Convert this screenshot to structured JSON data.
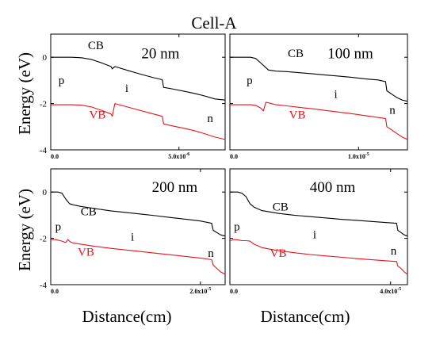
{
  "figure": {
    "title": "Cell-A",
    "xlabel": "Distance(cm)",
    "ylabel": "Energy (eV)"
  },
  "colors": {
    "cb": "#000000",
    "vb": "#e8141c",
    "axes": "#000000"
  },
  "chart_data": [
    {
      "type": "line",
      "title": "20 nm",
      "xlim": [
        0,
        6.8e-06
      ],
      "ylim": [
        -4,
        1
      ],
      "x_ticks": [
        {
          "value": 0,
          "label": "0.0"
        },
        {
          "value": 5e-06,
          "label": "5.0x10^-6"
        }
      ],
      "y_ticks": [
        {
          "value": 0,
          "label": "0"
        },
        {
          "value": -2,
          "label": "-2"
        },
        {
          "value": -4,
          "label": "-4"
        }
      ],
      "annotations": [
        {
          "text": "CB",
          "x": 1.45e-06,
          "y": 0.35,
          "color": "#000000"
        },
        {
          "text": "VB",
          "x": 1.5e-06,
          "y": -2.65,
          "color": "#e8141c"
        },
        {
          "text": "p",
          "x": 3e-07,
          "y": -1.15,
          "color": "#000000"
        },
        {
          "text": "i",
          "x": 2.9e-06,
          "y": -1.5,
          "color": "#000000"
        },
        {
          "text": "n",
          "x": 6.1e-06,
          "y": -2.8,
          "color": "#000000"
        }
      ],
      "series": [
        {
          "name": "CB",
          "x": [
            0,
            4e-07,
            8e-07,
            1.2e-06,
            1.6e-06,
            2e-06,
            2.35e-06,
            2.4e-06,
            2.5e-06,
            3e-06,
            3.5e-06,
            4e-06,
            4.35e-06,
            4.4e-06,
            4.8e-06,
            5.2e-06,
            5.6e-06,
            6e-06,
            6.4e-06,
            6.8e-06
          ],
          "y": [
            0,
            0,
            0,
            -0.02,
            -0.1,
            -0.25,
            -0.4,
            -0.5,
            -0.4,
            -0.57,
            -0.73,
            -0.88,
            -0.97,
            -1.3,
            -1.38,
            -1.47,
            -1.56,
            -1.67,
            -1.8,
            -1.85
          ]
        },
        {
          "name": "VB",
          "x": [
            0,
            4e-07,
            8e-07,
            1.2e-06,
            1.6e-06,
            2e-06,
            2.35e-06,
            2.4e-06,
            2.5e-06,
            3e-06,
            3.5e-06,
            4e-06,
            4.35e-06,
            4.4e-06,
            4.8e-06,
            5.2e-06,
            5.6e-06,
            6e-06,
            6.4e-06,
            6.8e-06
          ],
          "y": [
            -2.05,
            -2.05,
            -2.05,
            -2.07,
            -2.15,
            -2.3,
            -2.45,
            -2.55,
            -2.0,
            -2.15,
            -2.3,
            -2.45,
            -2.55,
            -2.88,
            -2.98,
            -3.07,
            -3.17,
            -3.3,
            -3.45,
            -3.55
          ]
        }
      ]
    },
    {
      "type": "line",
      "title": "100 nm",
      "xlim": [
        0,
        1.38e-05
      ],
      "ylim": [
        -4,
        1
      ],
      "x_ticks": [
        {
          "value": 0,
          "label": "0.0"
        },
        {
          "value": 1e-05,
          "label": "1.0x10^-5"
        }
      ],
      "y_ticks": [
        {
          "value": 0,
          "label": "0"
        },
        {
          "value": -2,
          "label": "-2"
        },
        {
          "value": -4,
          "label": "-4"
        }
      ],
      "annotations": [
        {
          "text": "CB",
          "x": 4.5e-06,
          "y": 0.0,
          "color": "#000000"
        },
        {
          "text": "VB",
          "x": 4.6e-06,
          "y": -2.65,
          "color": "#e8141c"
        },
        {
          "text": "p",
          "x": 1.3e-06,
          "y": -1.15,
          "color": "#000000"
        },
        {
          "text": "i",
          "x": 8.1e-06,
          "y": -1.75,
          "color": "#000000"
        },
        {
          "text": "n",
          "x": 1.24e-05,
          "y": -2.45,
          "color": "#000000"
        }
      ],
      "series": [
        {
          "name": "CB",
          "x": [
            0,
            8e-07,
            1.6e-06,
            2e-06,
            2.4e-06,
            2.8e-06,
            3e-06,
            3.6e-06,
            4.4e-06,
            5.5e-06,
            6.5e-06,
            7.5e-06,
            8.5e-06,
            9.5e-06,
            1.05e-05,
            1.15e-05,
            1.21e-05,
            1.22e-05,
            1.26e-05,
            1.3e-05,
            1.34e-05,
            1.38e-05
          ],
          "y": [
            0,
            0,
            0,
            -0.05,
            -0.25,
            -0.45,
            -0.55,
            -0.6,
            -0.62,
            -0.67,
            -0.72,
            -0.77,
            -0.82,
            -0.87,
            -0.93,
            -0.98,
            -1.05,
            -1.45,
            -1.6,
            -1.75,
            -1.85,
            -1.9
          ]
        },
        {
          "name": "VB",
          "x": [
            0,
            8e-07,
            1.6e-06,
            2e-06,
            2.4e-06,
            2.6e-06,
            2.8e-06,
            3e-06,
            3.6e-06,
            4.4e-06,
            5.5e-06,
            6.5e-06,
            7.5e-06,
            8.5e-06,
            9.5e-06,
            1.05e-05,
            1.15e-05,
            1.21e-05,
            1.22e-05,
            1.26e-05,
            1.3e-05,
            1.34e-05,
            1.38e-05
          ],
          "y": [
            -2.05,
            -2.05,
            -2.05,
            -2.08,
            -2.2,
            -2.32,
            -1.95,
            -1.97,
            -2.05,
            -2.1,
            -2.17,
            -2.23,
            -2.3,
            -2.37,
            -2.44,
            -2.52,
            -2.6,
            -2.65,
            -3.0,
            -3.15,
            -3.3,
            -3.45,
            -3.55
          ]
        }
      ]
    },
    {
      "type": "line",
      "title": "200 nm",
      "xlim": [
        0,
        2.33e-05
      ],
      "ylim": [
        -4,
        1
      ],
      "x_ticks": [
        {
          "value": 0,
          "label": "0.0"
        },
        {
          "value": 2e-05,
          "label": "2.0x10^-5"
        }
      ],
      "y_ticks": [
        {
          "value": 0,
          "label": "0"
        },
        {
          "value": -2,
          "label": "-2"
        },
        {
          "value": -4,
          "label": "-4"
        }
      ],
      "annotations": [
        {
          "text": "CB",
          "x": 4e-06,
          "y": -1.0,
          "color": "#000000"
        },
        {
          "text": "VB",
          "x": 3.6e-06,
          "y": -2.75,
          "color": "#e8141c"
        },
        {
          "text": "p",
          "x": 6e-07,
          "y": -1.65,
          "color": "#000000"
        },
        {
          "text": "i",
          "x": 1.07e-05,
          "y": -2.1,
          "color": "#000000"
        },
        {
          "text": "n",
          "x": 2.1e-05,
          "y": -2.8,
          "color": "#000000"
        }
      ],
      "series": [
        {
          "name": "CB",
          "x": [
            0,
            5e-07,
            1e-06,
            1.5e-06,
            2e-06,
            2.5e-06,
            3e-06,
            4e-06,
            6e-06,
            8e-06,
            1e-05,
            1.2e-05,
            1.4e-05,
            1.6e-05,
            1.8e-05,
            2e-05,
            2.15e-05,
            2.17e-05,
            2.22e-05,
            2.27e-05,
            2.33e-05
          ],
          "y": [
            0,
            0,
            0,
            -0.05,
            -0.3,
            -0.5,
            -0.55,
            -0.62,
            -0.72,
            -0.81,
            -0.88,
            -0.95,
            -1.02,
            -1.1,
            -1.17,
            -1.25,
            -1.35,
            -1.65,
            -1.75,
            -1.85,
            -1.9
          ]
        },
        {
          "name": "VB",
          "x": [
            0,
            5e-07,
            1e-06,
            1.5e-06,
            2e-06,
            2.3e-06,
            2.6e-06,
            3e-06,
            4e-06,
            6e-06,
            8e-06,
            1e-05,
            1.2e-05,
            1.4e-05,
            1.6e-05,
            1.8e-05,
            2e-05,
            2.15e-05,
            2.17e-05,
            2.22e-05,
            2.27e-05,
            2.33e-05
          ],
          "y": [
            -2.05,
            -2.05,
            -2.08,
            -2.12,
            -2.18,
            -2.05,
            -2.15,
            -2.2,
            -2.25,
            -2.35,
            -2.43,
            -2.5,
            -2.57,
            -2.64,
            -2.71,
            -2.78,
            -2.85,
            -2.92,
            -3.15,
            -3.3,
            -3.45,
            -3.55
          ]
        }
      ]
    },
    {
      "type": "line",
      "title": "400 nm",
      "xlim": [
        0,
        4.42e-05
      ],
      "ylim": [
        -4,
        1
      ],
      "x_ticks": [
        {
          "value": 0,
          "label": "0.0"
        },
        {
          "value": 4e-05,
          "label": "4.0x10^-5"
        }
      ],
      "y_ticks": [
        {
          "value": 0,
          "label": "0"
        },
        {
          "value": -2,
          "label": "-2"
        },
        {
          "value": -4,
          "label": "-4"
        }
      ],
      "annotations": [
        {
          "text": "CB",
          "x": 1.06e-05,
          "y": -0.8,
          "color": "#000000"
        },
        {
          "text": "VB",
          "x": 1e-05,
          "y": -2.8,
          "color": "#e8141c"
        },
        {
          "text": "p",
          "x": 1e-06,
          "y": -1.65,
          "color": "#000000"
        },
        {
          "text": "i",
          "x": 2.07e-05,
          "y": -2.0,
          "color": "#000000"
        },
        {
          "text": "n",
          "x": 4e-05,
          "y": -2.7,
          "color": "#000000"
        }
      ],
      "series": [
        {
          "name": "CB",
          "x": [
            0,
            1e-06,
            2e-06,
            3e-06,
            4e-06,
            5e-06,
            6e-06,
            8e-06,
            1.2e-05,
            1.6e-05,
            2e-05,
            2.4e-05,
            2.8e-05,
            3.2e-05,
            3.6e-05,
            3.9e-05,
            4.15e-05,
            4.18e-05,
            4.26e-05,
            4.34e-05,
            4.42e-05
          ],
          "y": [
            0,
            0,
            0,
            -0.05,
            -0.2,
            -0.5,
            -0.65,
            -0.8,
            -0.92,
            -1.0,
            -1.06,
            -1.12,
            -1.18,
            -1.23,
            -1.28,
            -1.32,
            -1.35,
            -1.65,
            -1.75,
            -1.85,
            -1.9
          ]
        },
        {
          "name": "VB",
          "x": [
            0,
            1e-06,
            2e-06,
            3e-06,
            4e-06,
            5e-06,
            6e-06,
            8e-06,
            1.2e-05,
            1.6e-05,
            2e-05,
            2.4e-05,
            2.8e-05,
            3.2e-05,
            3.6e-05,
            3.9e-05,
            4.15e-05,
            4.18e-05,
            4.26e-05,
            4.34e-05,
            4.42e-05
          ],
          "y": [
            -2.1,
            -2.05,
            -2.07,
            -2.1,
            -2.1,
            -2.12,
            -2.25,
            -2.4,
            -2.53,
            -2.62,
            -2.7,
            -2.76,
            -2.82,
            -2.88,
            -2.93,
            -2.97,
            -3.0,
            -3.2,
            -3.3,
            -3.45,
            -3.55
          ]
        }
      ]
    }
  ]
}
